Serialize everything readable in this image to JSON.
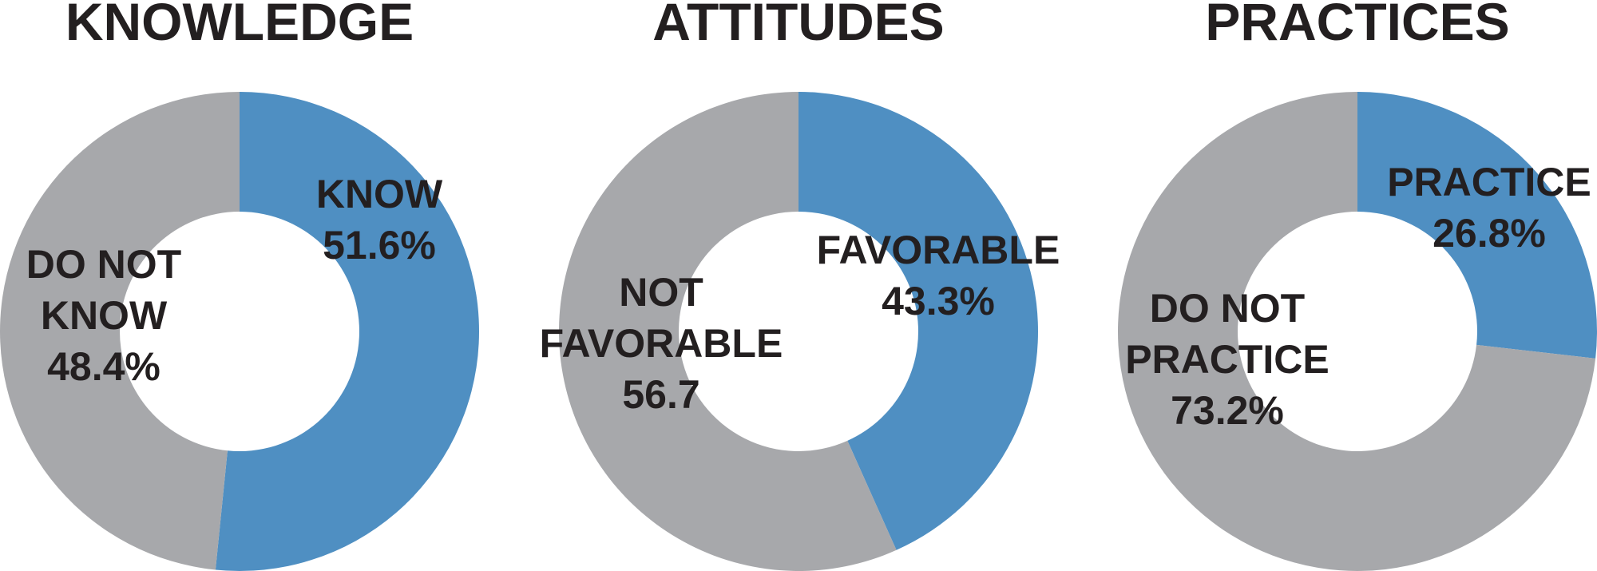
{
  "colors": {
    "primary": "#4f8fc2",
    "secondary": "#a7a8ab",
    "text": "#231f20"
  },
  "chart_data": [
    {
      "type": "pie",
      "title": "KNOWLEDGE",
      "slices": [
        {
          "name": "KNOW",
          "value": 51.6,
          "color": "#4f8fc2",
          "label_lines": [
            "KNOW",
            "51.6%"
          ]
        },
        {
          "name": "DO NOT KNOW",
          "value": 48.4,
          "color": "#a7a8ab",
          "label_lines": [
            "DO NOT",
            "KNOW",
            "48.4%"
          ]
        }
      ]
    },
    {
      "type": "pie",
      "title": "ATTITUDES",
      "slices": [
        {
          "name": "FAVORABLE",
          "value": 43.3,
          "color": "#4f8fc2",
          "label_lines": [
            "FAVORABLE",
            "43.3%"
          ]
        },
        {
          "name": "NOT FAVORABLE",
          "value": 56.7,
          "color": "#a7a8ab",
          "label_lines": [
            "NOT",
            "FAVORABLE",
            "56.7"
          ]
        }
      ]
    },
    {
      "type": "pie",
      "title": "PRACTICES",
      "slices": [
        {
          "name": "PRACTICE",
          "value": 26.8,
          "color": "#4f8fc2",
          "label_lines": [
            "PRACTICE",
            "26.8%"
          ]
        },
        {
          "name": "DO NOT PRACTICE",
          "value": 73.2,
          "color": "#a7a8ab",
          "label_lines": [
            "DO NOT",
            "PRACTICE",
            "73.2%"
          ]
        }
      ]
    }
  ]
}
